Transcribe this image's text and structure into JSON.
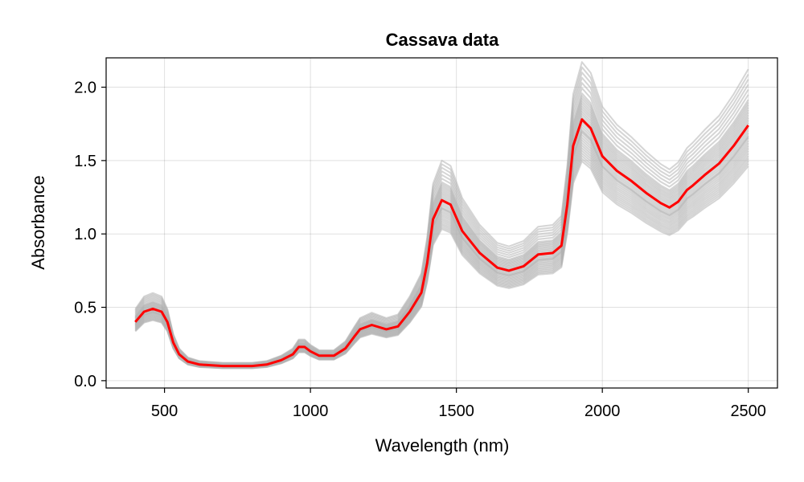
{
  "chart_data": {
    "type": "line",
    "title": "Cassava data",
    "xlabel": "Wavelength (nm)",
    "ylabel": "Absorbance",
    "xlim": [
      300,
      2600
    ],
    "ylim": [
      -0.05,
      2.2
    ],
    "xticks": [
      500,
      1000,
      1500,
      2000,
      2500
    ],
    "yticks": [
      0.0,
      0.5,
      1.0,
      1.5,
      2.0
    ],
    "xtick_labels": [
      "500",
      "1000",
      "1500",
      "2000",
      "2500"
    ],
    "ytick_labels": [
      "0.0",
      "0.5",
      "1.0",
      "1.5",
      "2.0"
    ],
    "grid": true,
    "legend": "none",
    "colors": {
      "spectra": "#b3b3b3",
      "mean": "#ff0000"
    },
    "x": [
      400,
      430,
      460,
      490,
      510,
      530,
      550,
      580,
      620,
      700,
      750,
      800,
      850,
      900,
      940,
      960,
      980,
      1000,
      1030,
      1080,
      1120,
      1150,
      1170,
      1210,
      1260,
      1300,
      1340,
      1380,
      1400,
      1420,
      1450,
      1480,
      1520,
      1580,
      1640,
      1680,
      1730,
      1780,
      1830,
      1860,
      1880,
      1900,
      1930,
      1960,
      2000,
      2050,
      2100,
      2150,
      2200,
      2230,
      2260,
      2290,
      2310,
      2350,
      2400,
      2450,
      2500
    ],
    "series": [
      {
        "values": [
          0.4,
          0.47,
          0.49,
          0.47,
          0.4,
          0.26,
          0.18,
          0.13,
          0.11,
          0.1,
          0.1,
          0.1,
          0.11,
          0.14,
          0.18,
          0.23,
          0.23,
          0.2,
          0.17,
          0.17,
          0.22,
          0.3,
          0.35,
          0.38,
          0.35,
          0.37,
          0.47,
          0.6,
          0.8,
          1.1,
          1.23,
          1.2,
          1.02,
          0.87,
          0.77,
          0.75,
          0.78,
          0.86,
          0.87,
          0.92,
          1.2,
          1.6,
          1.78,
          1.72,
          1.53,
          1.43,
          1.36,
          1.28,
          1.21,
          1.18,
          1.22,
          1.3,
          1.33,
          1.4,
          1.48,
          1.6,
          1.74
        ]
      }
    ],
    "spectra_scales": [
      1.22,
      1.2,
      1.18,
      1.16,
      1.14,
      1.12,
      1.1,
      1.09,
      1.08,
      1.07,
      1.06,
      1.05,
      1.04,
      1.03,
      1.02,
      1.01,
      1.0,
      0.99,
      0.98,
      0.97,
      0.96,
      0.955,
      0.95,
      0.94,
      0.93,
      0.92,
      0.91,
      0.9,
      0.89,
      0.88,
      0.87,
      0.86,
      0.85,
      0.84
    ]
  }
}
